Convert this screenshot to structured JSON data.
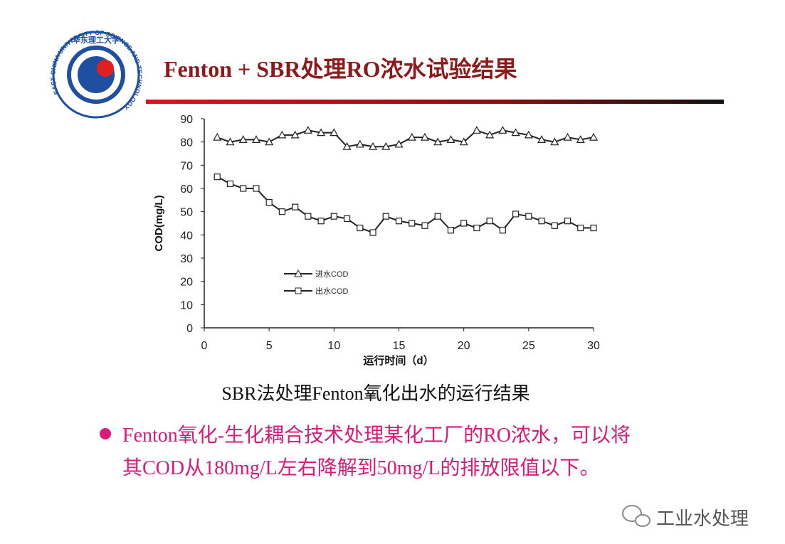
{
  "slide_title": "Fenton + SBR处理RO浓水试验结果",
  "logo": {
    "name_cn": "华东理工大学",
    "name_en": "EAST CHINA UNIVERSITY OF SCIENCE AND TECHNOLOGY"
  },
  "chart_data": {
    "type": "line",
    "x_label": "运行时间（d）",
    "y_label": "COD(mg/L)",
    "x": [
      1,
      2,
      3,
      4,
      5,
      6,
      7,
      8,
      9,
      10,
      11,
      12,
      13,
      14,
      15,
      16,
      17,
      18,
      19,
      20,
      21,
      22,
      23,
      24,
      25,
      26,
      27,
      28,
      29,
      30
    ],
    "series": [
      {
        "name": "进水COD",
        "color": "#222222",
        "marker": "triangle",
        "values": [
          82,
          80,
          81,
          81,
          80,
          83,
          83,
          85,
          84,
          84,
          78,
          79,
          78,
          78,
          79,
          82,
          82,
          80,
          81,
          80,
          85,
          83,
          85,
          84,
          83,
          81,
          80,
          82,
          81,
          82
        ]
      },
      {
        "name": "出水COD",
        "color": "#222222",
        "marker": "square",
        "values": [
          65,
          62,
          60,
          60,
          54,
          50,
          52,
          48,
          46,
          48,
          47,
          43,
          41,
          48,
          46,
          45,
          44,
          48,
          42,
          45,
          43,
          46,
          42,
          49,
          48,
          46,
          44,
          46,
          43,
          43
        ]
      }
    ],
    "xlim": [
      0,
      30
    ],
    "xticks": [
      0,
      5,
      10,
      15,
      20,
      25,
      30
    ],
    "ylim": [
      0,
      90
    ],
    "yticks": [
      0,
      10,
      20,
      30,
      40,
      50,
      60,
      70,
      80,
      90
    ],
    "grid": false,
    "legend": "center-left"
  },
  "caption": "SBR法处理Fenton氧化出水的运行结果",
  "bullet": [
    "Fenton氧化-生化耦合技术处理某化工厂的RO浓水，可以将",
    "其COD从180mg/L左右降解到50mg/L的排放限值以下。"
  ],
  "watermark": "工业水处理"
}
